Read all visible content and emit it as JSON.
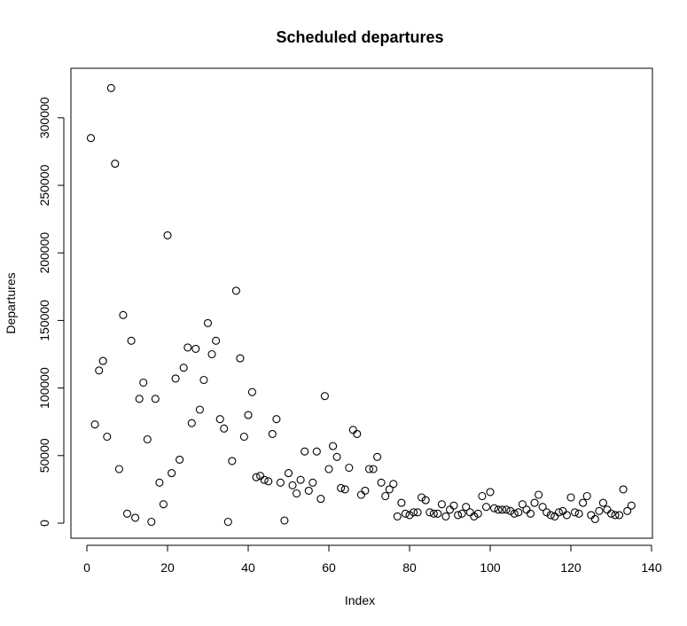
{
  "chart_data": {
    "type": "scatter",
    "title": "Scheduled departures",
    "xlabel": "Index",
    "ylabel": "Departures",
    "xlim": [
      0,
      140
    ],
    "ylim": [
      0,
      320000
    ],
    "x_ticks": [
      "0",
      "20",
      "40",
      "60",
      "80",
      "100",
      "120",
      "140"
    ],
    "y_ticks": [
      "0",
      "50000",
      "100000",
      "150000",
      "200000",
      "250000",
      "300000"
    ],
    "grid": false,
    "legend": "none",
    "marker": "open-circle",
    "point_color": "#000000",
    "x": [
      1,
      2,
      3,
      4,
      5,
      6,
      7,
      8,
      9,
      10,
      11,
      12,
      13,
      14,
      15,
      16,
      17,
      18,
      19,
      20,
      21,
      22,
      23,
      24,
      25,
      26,
      27,
      28,
      29,
      30,
      31,
      32,
      33,
      34,
      35,
      36,
      37,
      38,
      39,
      40,
      41,
      42,
      43,
      44,
      45,
      46,
      47,
      48,
      49,
      50,
      51,
      52,
      53,
      54,
      55,
      56,
      57,
      58,
      59,
      60,
      61,
      62,
      63,
      64,
      65,
      66,
      67,
      68,
      69,
      70,
      71,
      72,
      73,
      74,
      75,
      76,
      77,
      78,
      79,
      80,
      81,
      82,
      83,
      84,
      85,
      86,
      87,
      88,
      89,
      90,
      91,
      92,
      93,
      94,
      95,
      96,
      97,
      98,
      99,
      100,
      101,
      102,
      103,
      104,
      105,
      106,
      107,
      108,
      109,
      110,
      111,
      112,
      113,
      114,
      115,
      116,
      117,
      118,
      119,
      120,
      121,
      122,
      123,
      124,
      125,
      126,
      127,
      128,
      129,
      130,
      131,
      132,
      133,
      134,
      135
    ],
    "y": [
      285000,
      73000,
      113000,
      120000,
      64000,
      322000,
      266000,
      40000,
      154000,
      7000,
      135000,
      4000,
      92000,
      104000,
      62000,
      1000,
      92000,
      30000,
      14000,
      213000,
      37000,
      107000,
      47000,
      115000,
      130000,
      74000,
      129000,
      84000,
      106000,
      148000,
      125000,
      135000,
      77000,
      70000,
      1000,
      46000,
      172000,
      122000,
      64000,
      80000,
      97000,
      34000,
      35000,
      32000,
      31000,
      66000,
      77000,
      30000,
      2000,
      37000,
      28000,
      22000,
      32000,
      53000,
      24000,
      30000,
      53000,
      18000,
      94000,
      40000,
      57000,
      49000,
      26000,
      25000,
      41000,
      69000,
      66000,
      21000,
      24000,
      40000,
      40000,
      49000,
      30000,
      20000,
      25000,
      29000,
      5000,
      15000,
      7000,
      6000,
      8000,
      8000,
      19000,
      17000,
      8000,
      7000,
      7000,
      14000,
      5000,
      10000,
      13000,
      6000,
      7000,
      12000,
      8000,
      5000,
      7000,
      20000,
      12000,
      23000,
      11000,
      10000,
      10000,
      10000,
      9000,
      7000,
      8000,
      14000,
      10000,
      7000,
      15000,
      21000,
      12000,
      8000,
      6000,
      5000,
      8000,
      9000,
      6000,
      19000,
      8000,
      7000,
      15000,
      20000,
      6000,
      3000,
      9000,
      15000,
      10000,
      7000,
      6000,
      6000,
      25000,
      9000,
      13000
    ]
  }
}
